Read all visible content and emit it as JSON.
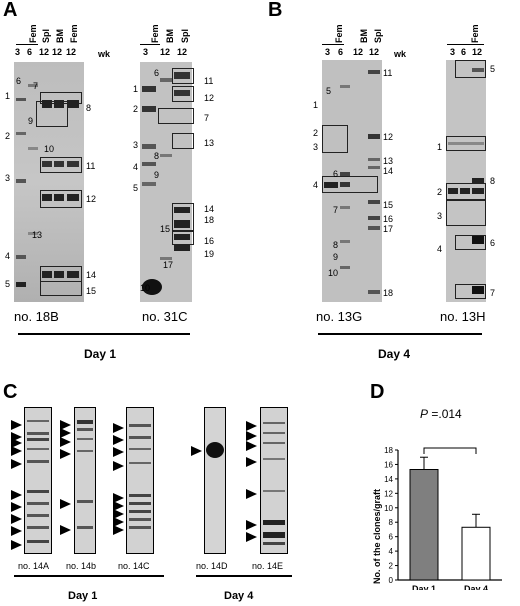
{
  "panelA": {
    "letter": "A",
    "gel1": {
      "lane_group": "Fem",
      "headers": [
        "3",
        "6",
        "12",
        "12",
        "12"
      ],
      "rotated_headers": [
        "Spl",
        "BM",
        "Fem"
      ],
      "unit": "wk",
      "left_numbers": [
        "1",
        "2",
        "3",
        "4",
        "5"
      ],
      "inner_numbers": [
        "6",
        "7",
        "9",
        "10",
        "13"
      ],
      "right_numbers": [
        "8",
        "11",
        "12",
        "14",
        "15"
      ],
      "caption": "no. 18B"
    },
    "gel2": {
      "lane_group": "Fem",
      "headers": [
        "3",
        "12",
        "12"
      ],
      "rotated_headers": [
        "BM",
        "Spl"
      ],
      "left_numbers": [
        "1",
        "2",
        "3",
        "4",
        "5",
        "10"
      ],
      "inner_numbers": [
        "6",
        "8",
        "9",
        "15",
        "17"
      ],
      "right_numbers": [
        "11",
        "12",
        "7",
        "13",
        "14",
        "18",
        "16",
        "19"
      ],
      "caption": "no. 31C"
    },
    "day": "Day 1"
  },
  "panelB": {
    "letter": "B",
    "gel1": {
      "lane_group": "Fem",
      "headers": [
        "3",
        "6",
        "12",
        "12"
      ],
      "rotated_headers": [
        "BM",
        "Spl"
      ],
      "unit": "wk",
      "left_numbers": [
        "1",
        "2",
        "3",
        "4"
      ],
      "inner_numbers": [
        "5",
        "6",
        "7",
        "8",
        "9",
        "10"
      ],
      "right_numbers": [
        "11",
        "12",
        "13",
        "14",
        "15",
        "16",
        "17",
        "18"
      ],
      "caption": "no. 13G"
    },
    "gel2": {
      "lane_group": "Fem",
      "headers": [
        "3",
        "6",
        "12"
      ],
      "left_numbers": [
        "1",
        "2",
        "3",
        "4"
      ],
      "right_numbers": [
        "5",
        "8",
        "6",
        "7"
      ],
      "caption": "no. 13H"
    },
    "day": "Day 4"
  },
  "panelC": {
    "letter": "C",
    "lanes": [
      "no. 14A",
      "no. 14b",
      "no. 14C",
      "no. 14D",
      "no. 14E"
    ],
    "day1": "Day 1",
    "day4": "Day 4"
  },
  "panelD": {
    "letter": "D",
    "pvalue_label": "P",
    "pvalue_text": " =.014",
    "chart_data": {
      "type": "bar",
      "categories": [
        "Day 1",
        "Day 4"
      ],
      "values": [
        15.3,
        7.3
      ],
      "errors": [
        1.7,
        1.8
      ],
      "ylabel": "No. of the clones/graft",
      "ylim": [
        0,
        18
      ],
      "yticks": [
        0,
        2,
        4,
        6,
        8,
        10,
        12,
        14,
        16,
        18
      ],
      "colors": [
        "#7f7f7f",
        "#ffffff"
      ]
    }
  }
}
